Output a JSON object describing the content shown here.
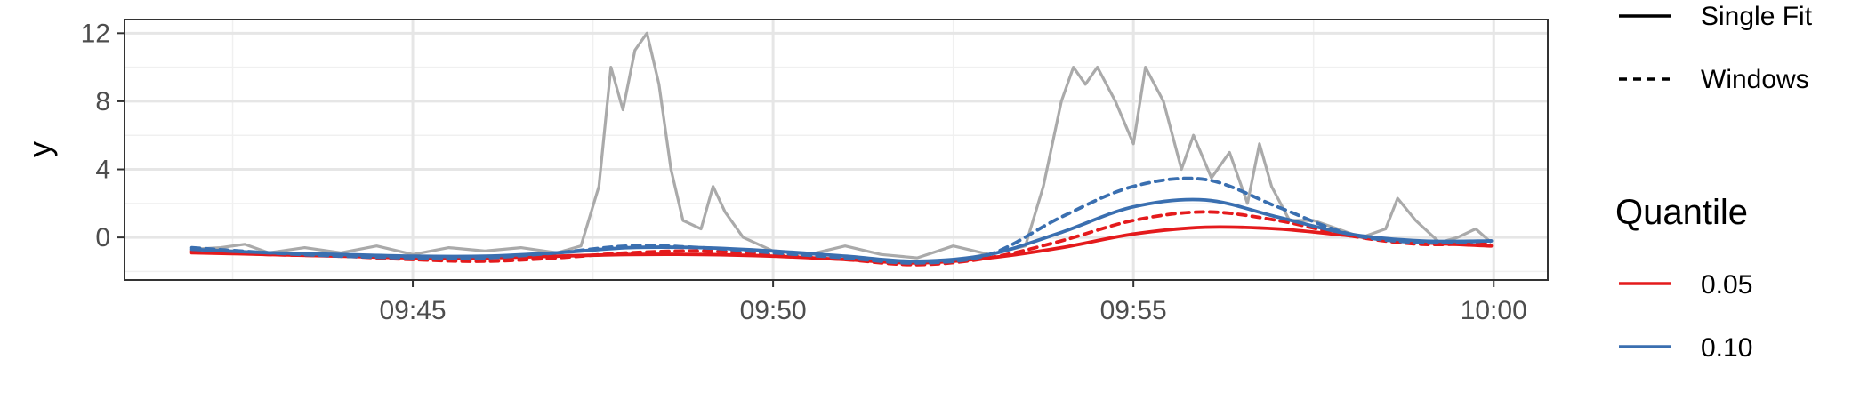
{
  "chart_data": {
    "type": "line",
    "title": "",
    "xlabel": "",
    "ylabel": "y",
    "xlim": [
      "09:41:00",
      "10:00:45"
    ],
    "ylim": [
      -2.5,
      12.8
    ],
    "x_ticks": [
      "09:45",
      "09:50",
      "09:55",
      "10:00"
    ],
    "y_ticks": [
      0,
      4,
      8,
      12
    ],
    "grid": true,
    "legend_placement": "right",
    "observed": {
      "color": "#aaaaaa",
      "points": [
        [
          "09:41:56",
          -0.7
        ],
        [
          "09:42:20",
          -0.6
        ],
        [
          "09:42:40",
          -0.4
        ],
        [
          "09:43:00",
          -0.9
        ],
        [
          "09:43:30",
          -0.6
        ],
        [
          "09:44:00",
          -0.9
        ],
        [
          "09:44:30",
          -0.5
        ],
        [
          "09:45:00",
          -1.0
        ],
        [
          "09:45:30",
          -0.6
        ],
        [
          "09:46:00",
          -0.8
        ],
        [
          "09:46:30",
          -0.6
        ],
        [
          "09:47:00",
          -0.9
        ],
        [
          "09:47:20",
          -0.5
        ],
        [
          "09:47:35",
          3.0
        ],
        [
          "09:47:45",
          10.0
        ],
        [
          "09:47:55",
          7.5
        ],
        [
          "09:48:05",
          11.0
        ],
        [
          "09:48:15",
          12.0
        ],
        [
          "09:48:25",
          9.0
        ],
        [
          "09:48:35",
          4.0
        ],
        [
          "09:48:45",
          1.0
        ],
        [
          "09:49:00",
          0.5
        ],
        [
          "09:49:10",
          3.0
        ],
        [
          "09:49:20",
          1.5
        ],
        [
          "09:49:35",
          0.0
        ],
        [
          "09:50:00",
          -0.8
        ],
        [
          "09:50:30",
          -1.0
        ],
        [
          "09:51:00",
          -0.5
        ],
        [
          "09:51:30",
          -1.0
        ],
        [
          "09:52:00",
          -1.2
        ],
        [
          "09:52:30",
          -0.5
        ],
        [
          "09:53:00",
          -1.0
        ],
        [
          "09:53:30",
          -0.5
        ],
        [
          "09:53:45",
          3.0
        ],
        [
          "09:54:00",
          8.0
        ],
        [
          "09:54:10",
          10.0
        ],
        [
          "09:54:20",
          9.0
        ],
        [
          "09:54:30",
          10.0
        ],
        [
          "09:54:45",
          8.0
        ],
        [
          "09:55:00",
          5.5
        ],
        [
          "09:55:10",
          10.0
        ],
        [
          "09:55:25",
          8.0
        ],
        [
          "09:55:40",
          4.0
        ],
        [
          "09:55:50",
          6.0
        ],
        [
          "09:56:05",
          3.5
        ],
        [
          "09:56:20",
          5.0
        ],
        [
          "09:56:35",
          2.0
        ],
        [
          "09:56:45",
          5.5
        ],
        [
          "09:56:55",
          3.0
        ],
        [
          "09:57:10",
          1.0
        ],
        [
          "09:57:30",
          1.0
        ],
        [
          "09:57:50",
          0.5
        ],
        [
          "09:58:10",
          0.0
        ],
        [
          "09:58:30",
          0.5
        ],
        [
          "09:58:40",
          2.3
        ],
        [
          "09:58:55",
          1.0
        ],
        [
          "09:59:15",
          -0.3
        ],
        [
          "09:59:30",
          0.0
        ],
        [
          "09:59:45",
          0.5
        ],
        [
          "09:59:58",
          -0.3
        ]
      ]
    },
    "series": [
      {
        "quantile": "0.05",
        "fit": "Single Fit",
        "color": "#e41a1c",
        "linestyle": "solid",
        "x": [
          "09:41:56",
          "09:43:00",
          "09:44:00",
          "09:45:00",
          "09:46:00",
          "09:47:00",
          "09:48:00",
          "09:49:00",
          "09:50:00",
          "09:51:00",
          "09:52:00",
          "09:53:00",
          "09:54:00",
          "09:55:00",
          "09:56:00",
          "09:57:00",
          "09:58:00",
          "09:59:00",
          "09:59:58"
        ],
        "values": [
          -0.9,
          -1.0,
          -1.1,
          -1.2,
          -1.2,
          -1.1,
          -1.0,
          -1.0,
          -1.1,
          -1.3,
          -1.5,
          -1.2,
          -0.6,
          0.2,
          0.6,
          0.5,
          0.1,
          -0.3,
          -0.5
        ]
      },
      {
        "quantile": "0.05",
        "fit": "Windows",
        "color": "#e41a1c",
        "linestyle": "dashed",
        "x": [
          "09:41:56",
          "09:43:00",
          "09:44:00",
          "09:45:00",
          "09:46:00",
          "09:47:00",
          "09:48:00",
          "09:49:00",
          "09:50:00",
          "09:51:00",
          "09:52:00",
          "09:53:00",
          "09:54:00",
          "09:55:00",
          "09:56:00",
          "09:57:00",
          "09:58:00",
          "09:59:00",
          "09:59:58"
        ],
        "values": [
          -0.8,
          -1.0,
          -1.1,
          -1.3,
          -1.4,
          -1.2,
          -0.9,
          -0.8,
          -1.0,
          -1.3,
          -1.6,
          -1.2,
          -0.2,
          1.0,
          1.5,
          1.0,
          0.1,
          -0.4,
          -0.3
        ]
      },
      {
        "quantile": "0.10",
        "fit": "Single Fit",
        "color": "#3a6fb0",
        "linestyle": "solid",
        "x": [
          "09:41:56",
          "09:43:00",
          "09:44:00",
          "09:45:00",
          "09:46:00",
          "09:47:00",
          "09:48:00",
          "09:49:00",
          "09:50:00",
          "09:51:00",
          "09:52:00",
          "09:53:00",
          "09:54:00",
          "09:55:00",
          "09:56:00",
          "09:57:00",
          "09:58:00",
          "09:59:00",
          "09:59:58"
        ],
        "values": [
          -0.7,
          -0.9,
          -1.0,
          -1.1,
          -1.1,
          -0.9,
          -0.6,
          -0.6,
          -0.8,
          -1.1,
          -1.4,
          -1.0,
          0.3,
          1.8,
          2.2,
          1.2,
          0.2,
          -0.2,
          -0.2
        ]
      },
      {
        "quantile": "0.10",
        "fit": "Windows",
        "color": "#3a6fb0",
        "linestyle": "dashed",
        "x": [
          "09:41:56",
          "09:43:00",
          "09:44:00",
          "09:45:00",
          "09:46:00",
          "09:47:00",
          "09:48:00",
          "09:49:00",
          "09:50:00",
          "09:51:00",
          "09:52:00",
          "09:53:00",
          "09:54:00",
          "09:55:00",
          "09:56:00",
          "09:57:00",
          "09:58:00",
          "09:59:00",
          "09:59:58"
        ],
        "values": [
          -0.6,
          -0.9,
          -1.1,
          -1.2,
          -1.2,
          -0.9,
          -0.5,
          -0.6,
          -0.9,
          -1.2,
          -1.5,
          -1.0,
          1.2,
          3.0,
          3.4,
          1.8,
          0.2,
          -0.3,
          -0.2
        ]
      }
    ],
    "legend_linetype": {
      "items": [
        {
          "label": "Single Fit",
          "linestyle": "solid"
        },
        {
          "label": "Windows",
          "linestyle": "dashed"
        }
      ]
    },
    "legend_color": {
      "title": "Quantile",
      "items": [
        {
          "label": "0.05",
          "color": "#e41a1c"
        },
        {
          "label": "0.10",
          "color": "#3a6fb0"
        }
      ]
    }
  }
}
